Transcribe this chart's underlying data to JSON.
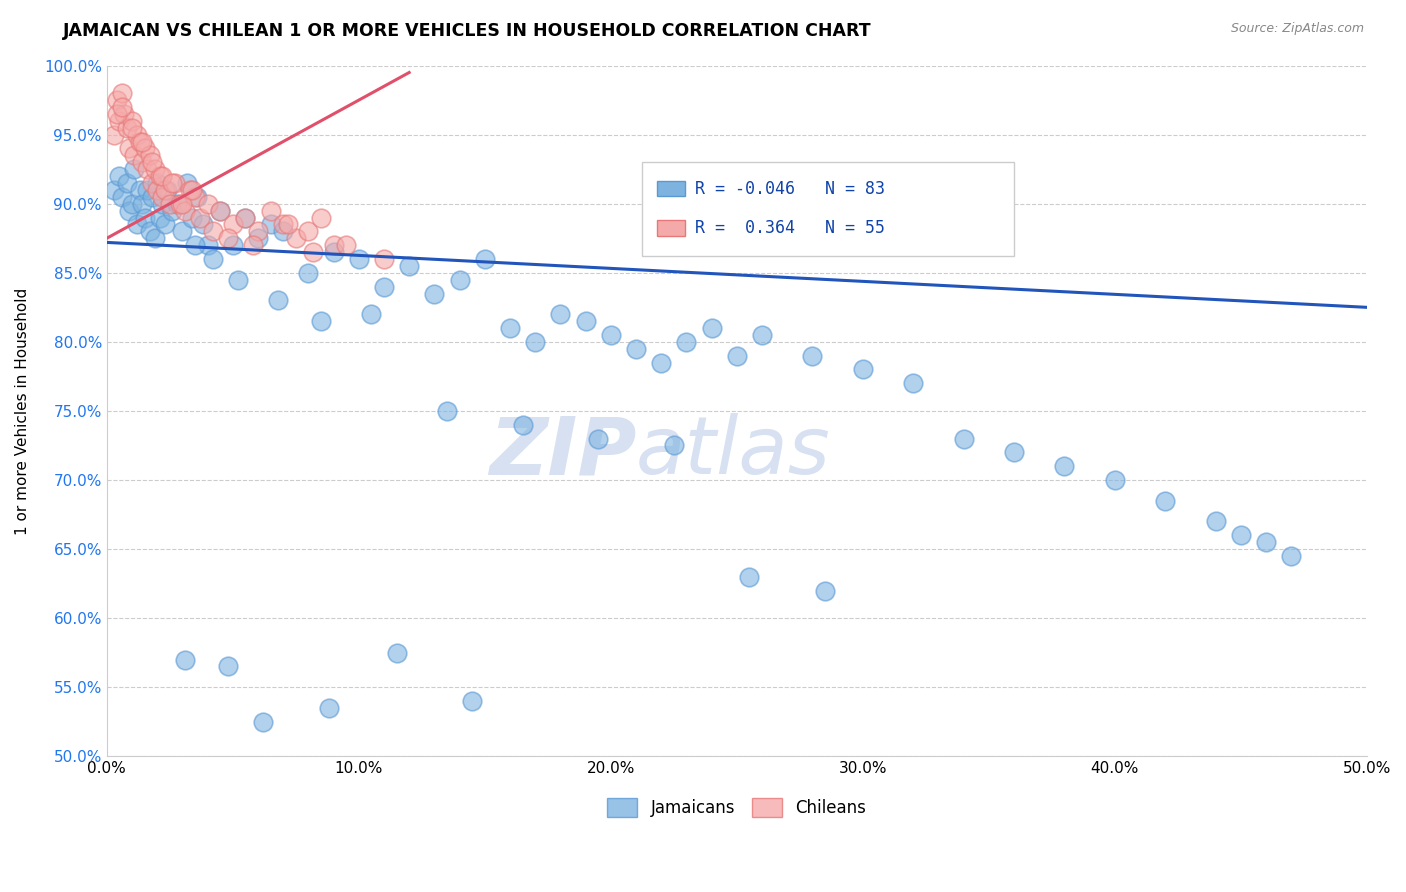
{
  "title": "JAMAICAN VS CHILEAN 1 OR MORE VEHICLES IN HOUSEHOLD CORRELATION CHART",
  "source": "Source: ZipAtlas.com",
  "ylabel": "1 or more Vehicles in Household",
  "xlim": [
    0.0,
    50.0
  ],
  "ylim": [
    50.0,
    100.0
  ],
  "xticks": [
    0.0,
    10.0,
    20.0,
    30.0,
    40.0,
    50.0
  ],
  "yticks": [
    50.0,
    55.0,
    60.0,
    65.0,
    70.0,
    75.0,
    80.0,
    85.0,
    90.0,
    95.0,
    100.0
  ],
  "ytick_labels": [
    "50.0%",
    "55.0%",
    "60.0%",
    "65.0%",
    "70.0%",
    "75.0%",
    "80.0%",
    "85.0%",
    "90.0%",
    "95.0%",
    "100.0%"
  ],
  "xtick_labels": [
    "0.0%",
    "10.0%",
    "20.0%",
    "30.0%",
    "40.0%",
    "50.0%"
  ],
  "jamaican_color": "#7EB3E0",
  "jamaican_edge": "#5B99D4",
  "chilean_color": "#F5AAAA",
  "chilean_edge": "#E87878",
  "jamaican_R": -0.046,
  "jamaican_N": 83,
  "chilean_R": 0.364,
  "chilean_N": 55,
  "trend_blue": "#2255BB",
  "trend_pink": "#E0506A",
  "watermark_color": "#D0DCF0",
  "legend_color": "#1144AA",
  "jamaican_x": [
    0.3,
    0.5,
    0.6,
    0.8,
    0.9,
    1.0,
    1.1,
    1.2,
    1.3,
    1.4,
    1.5,
    1.6,
    1.7,
    1.8,
    1.9,
    2.0,
    2.1,
    2.2,
    2.3,
    2.4,
    2.6,
    2.8,
    3.0,
    3.2,
    3.4,
    3.6,
    3.8,
    4.0,
    4.5,
    5.0,
    5.5,
    6.0,
    6.5,
    7.0,
    8.0,
    9.0,
    10.0,
    11.0,
    12.0,
    13.0,
    14.0,
    15.0,
    16.0,
    17.0,
    18.0,
    19.0,
    20.0,
    21.0,
    22.0,
    23.0,
    24.0,
    25.0,
    26.0,
    28.0,
    30.0,
    32.0,
    34.0,
    36.0,
    38.0,
    40.0,
    42.0,
    44.0,
    45.0,
    46.0,
    47.0,
    3.5,
    4.2,
    5.2,
    6.8,
    8.5,
    10.5,
    13.5,
    16.5,
    19.5,
    22.5,
    25.5,
    28.5,
    3.1,
    4.8,
    6.2,
    8.8,
    11.5,
    14.5
  ],
  "jamaican_y": [
    91.0,
    92.0,
    90.5,
    91.5,
    89.5,
    90.0,
    92.5,
    88.5,
    91.0,
    90.0,
    89.0,
    91.0,
    88.0,
    90.5,
    87.5,
    91.5,
    89.0,
    90.0,
    88.5,
    91.0,
    89.5,
    90.0,
    88.0,
    91.5,
    89.0,
    90.5,
    88.5,
    87.0,
    89.5,
    87.0,
    89.0,
    87.5,
    88.5,
    88.0,
    85.0,
    86.5,
    86.0,
    84.0,
    85.5,
    83.5,
    84.5,
    86.0,
    81.0,
    80.0,
    82.0,
    81.5,
    80.5,
    79.5,
    78.5,
    80.0,
    81.0,
    79.0,
    80.5,
    79.0,
    78.0,
    77.0,
    73.0,
    72.0,
    71.0,
    70.0,
    68.5,
    67.0,
    66.0,
    65.5,
    64.5,
    87.0,
    86.0,
    84.5,
    83.0,
    81.5,
    82.0,
    75.0,
    74.0,
    73.0,
    72.5,
    63.0,
    62.0,
    57.0,
    56.5,
    52.5,
    53.5,
    57.5,
    54.0
  ],
  "chilean_x": [
    0.3,
    0.4,
    0.5,
    0.6,
    0.7,
    0.8,
    0.9,
    1.0,
    1.1,
    1.2,
    1.3,
    1.4,
    1.5,
    1.6,
    1.7,
    1.8,
    1.9,
    2.0,
    2.1,
    2.2,
    2.3,
    2.5,
    2.7,
    2.9,
    3.1,
    3.3,
    3.5,
    3.7,
    4.0,
    4.5,
    5.0,
    5.5,
    6.0,
    6.5,
    7.0,
    7.5,
    8.0,
    8.5,
    9.0,
    0.4,
    0.6,
    1.0,
    1.4,
    1.8,
    2.2,
    2.6,
    3.0,
    3.4,
    4.2,
    4.8,
    5.8,
    7.2,
    8.2,
    9.5,
    11.0
  ],
  "chilean_y": [
    95.0,
    97.5,
    96.0,
    98.0,
    96.5,
    95.5,
    94.0,
    96.0,
    93.5,
    95.0,
    94.5,
    93.0,
    94.0,
    92.5,
    93.5,
    91.5,
    92.5,
    91.0,
    92.0,
    90.5,
    91.0,
    90.0,
    91.5,
    90.0,
    89.5,
    91.0,
    90.5,
    89.0,
    90.0,
    89.5,
    88.5,
    89.0,
    88.0,
    89.5,
    88.5,
    87.5,
    88.0,
    89.0,
    87.0,
    96.5,
    97.0,
    95.5,
    94.5,
    93.0,
    92.0,
    91.5,
    90.0,
    91.0,
    88.0,
    87.5,
    87.0,
    88.5,
    86.5,
    87.0,
    86.0
  ],
  "jam_trend_x0": 0.0,
  "jam_trend_y0": 87.2,
  "jam_trend_x1": 50.0,
  "jam_trend_y1": 82.5,
  "chi_trend_x0": 0.0,
  "chi_trend_y0": 87.5,
  "chi_trend_x1": 12.0,
  "chi_trend_y1": 99.5
}
